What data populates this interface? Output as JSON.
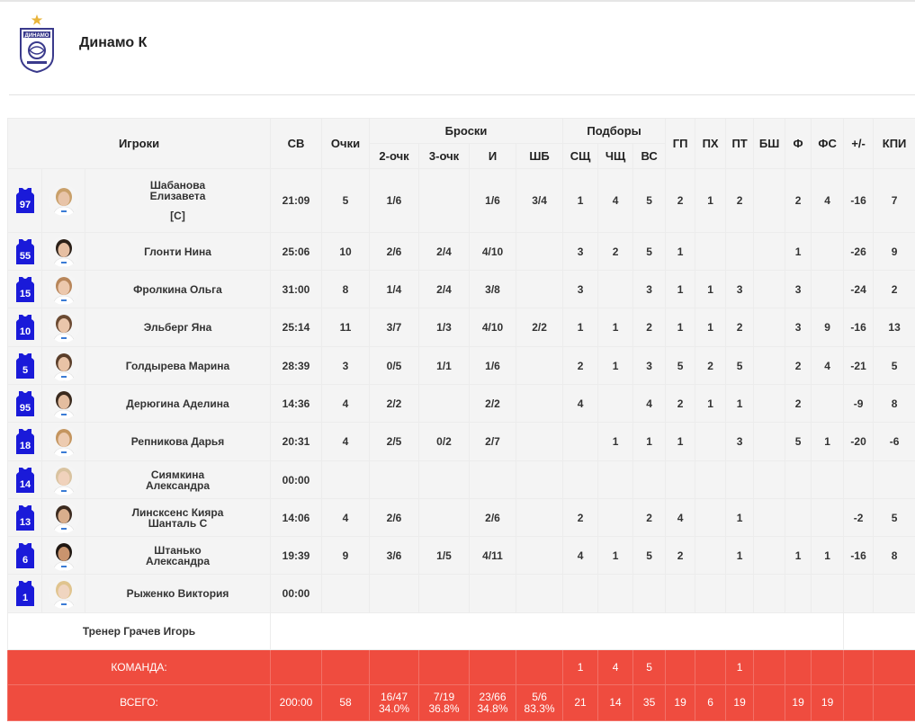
{
  "team": {
    "name": "Динамо К",
    "logo_text": "ДИНАМО"
  },
  "headers": {
    "players": "Игроки",
    "sv": "СВ",
    "points": "Очки",
    "shots": "Броски",
    "two": "2-очк",
    "three": "3-очк",
    "i": "И",
    "sb": "ШБ",
    "rebounds": "Подборы",
    "sshch": "СЩ",
    "chshch": "ЧЩ",
    "vs": "ВС",
    "gp": "ГП",
    "pkh": "ПХ",
    "pt": "ПТ",
    "bsh": "БШ",
    "f": "Ф",
    "fs": "ФС",
    "pm": "+/-",
    "kpi": "КПИ"
  },
  "players": [
    {
      "num": "97",
      "name1": "Шабанова",
      "name2": "Елизавета",
      "captain": "[C]",
      "time": "21:09",
      "pts": "5",
      "two": "1/6",
      "three": "",
      "i": "1/6",
      "sb": "3/4",
      "or": "1",
      "dr": "4",
      "tr": "5",
      "gp": "2",
      "pkh": "1",
      "pt": "2",
      "bsh": "",
      "f": "2",
      "fs": "4",
      "pm": "-16",
      "kpi": "7",
      "skin": "#e8c4a8",
      "hair": "#c9a06a"
    },
    {
      "num": "55",
      "name1": "Глонти Нина",
      "name2": "",
      "captain": "",
      "time": "25:06",
      "pts": "10",
      "two": "2/6",
      "three": "2/4",
      "i": "4/10",
      "sb": "",
      "or": "3",
      "dr": "2",
      "tr": "5",
      "gp": "1",
      "pkh": "",
      "pt": "",
      "bsh": "",
      "f": "1",
      "fs": "",
      "pm": "-26",
      "kpi": "9",
      "skin": "#e6bfa2",
      "hair": "#2b2018"
    },
    {
      "num": "15",
      "name1": "Фролкина Ольга",
      "name2": "",
      "captain": "",
      "time": "31:00",
      "pts": "8",
      "two": "1/4",
      "three": "2/4",
      "i": "3/8",
      "sb": "",
      "or": "3",
      "dr": "",
      "tr": "3",
      "gp": "1",
      "pkh": "1",
      "pt": "3",
      "bsh": "",
      "f": "3",
      "fs": "",
      "pm": "-24",
      "kpi": "2",
      "skin": "#ecc8ad",
      "hair": "#b8865a"
    },
    {
      "num": "10",
      "name1": "Эльберг Яна",
      "name2": "",
      "captain": "",
      "time": "25:14",
      "pts": "11",
      "two": "3/7",
      "three": "1/3",
      "i": "4/10",
      "sb": "2/2",
      "or": "1",
      "dr": "1",
      "tr": "2",
      "gp": "1",
      "pkh": "1",
      "pt": "2",
      "bsh": "",
      "f": "3",
      "fs": "9",
      "pm": "-16",
      "kpi": "13",
      "skin": "#eac6ab",
      "hair": "#6b4a32"
    },
    {
      "num": "5",
      "name1": "Голдырева Марина",
      "name2": "",
      "captain": "",
      "time": "28:39",
      "pts": "3",
      "two": "0/5",
      "three": "1/1",
      "i": "1/6",
      "sb": "",
      "or": "2",
      "dr": "1",
      "tr": "3",
      "gp": "5",
      "pkh": "2",
      "pt": "5",
      "bsh": "",
      "f": "2",
      "fs": "4",
      "pm": "-21",
      "kpi": "5",
      "skin": "#e9c3a6",
      "hair": "#5a3e2a"
    },
    {
      "num": "95",
      "name1": "Дерюгина Аделина",
      "name2": "",
      "captain": "",
      "time": "14:36",
      "pts": "4",
      "two": "2/2",
      "three": "",
      "i": "2/2",
      "sb": "",
      "or": "4",
      "dr": "",
      "tr": "4",
      "gp": "2",
      "pkh": "1",
      "pt": "1",
      "bsh": "",
      "f": "2",
      "fs": "",
      "pm": "-9",
      "kpi": "8",
      "skin": "#e4bd9f",
      "hair": "#3a2a1e"
    },
    {
      "num": "18",
      "name1": "Репникова Дарья",
      "name2": "",
      "captain": "",
      "time": "20:31",
      "pts": "4",
      "two": "2/5",
      "three": "0/2",
      "i": "2/7",
      "sb": "",
      "or": "",
      "dr": "1",
      "tr": "1",
      "gp": "1",
      "pkh": "",
      "pt": "3",
      "bsh": "",
      "f": "5",
      "fs": "1",
      "pm": "-20",
      "kpi": "-6",
      "skin": "#edcbb0",
      "hair": "#c4955f"
    },
    {
      "num": "14",
      "name1": "Сиямкина",
      "name2": "Александра",
      "captain": "",
      "time": "00:00",
      "pts": "",
      "two": "",
      "three": "",
      "i": "",
      "sb": "",
      "or": "",
      "dr": "",
      "tr": "",
      "gp": "",
      "pkh": "",
      "pt": "",
      "bsh": "",
      "f": "",
      "fs": "",
      "pm": "",
      "kpi": "",
      "skin": "#f0d2bc",
      "hair": "#d9c3a0"
    },
    {
      "num": "13",
      "name1": "Линсксенс Кияра",
      "name2": "Шанталь С",
      "captain": "",
      "time": "14:06",
      "pts": "4",
      "two": "2/6",
      "three": "",
      "i": "2/6",
      "sb": "",
      "or": "2",
      "dr": "",
      "tr": "2",
      "gp": "4",
      "pkh": "",
      "pt": "1",
      "bsh": "",
      "f": "",
      "fs": "",
      "pm": "-2",
      "kpi": "5",
      "skin": "#d9ae8c",
      "hair": "#3b2a1f"
    },
    {
      "num": "6",
      "name1": "Штанько",
      "name2": "Александра",
      "captain": "",
      "time": "19:39",
      "pts": "9",
      "two": "3/6",
      "three": "1/5",
      "i": "4/11",
      "sb": "",
      "or": "4",
      "dr": "1",
      "tr": "5",
      "gp": "2",
      "pkh": "",
      "pt": "1",
      "bsh": "",
      "f": "1",
      "fs": "1",
      "pm": "-16",
      "kpi": "8",
      "skin": "#c9946e",
      "hair": "#1f1712"
    },
    {
      "num": "1",
      "name1": "Рыженко Виктория",
      "name2": "",
      "captain": "",
      "time": "00:00",
      "pts": "",
      "two": "",
      "three": "",
      "i": "",
      "sb": "",
      "or": "",
      "dr": "",
      "tr": "",
      "gp": "",
      "pkh": "",
      "pt": "",
      "bsh": "",
      "f": "",
      "fs": "",
      "pm": "",
      "kpi": "",
      "skin": "#f0d5c0",
      "hair": "#e0c48e"
    }
  ],
  "coach": "Тренер Грачев Игорь",
  "team_row": {
    "label": "КОМАНДА:",
    "or": "1",
    "dr": "4",
    "tr": "5",
    "pt": "1"
  },
  "total_row": {
    "label": "ВСЕГО:",
    "time": "200:00",
    "pts": "58",
    "two": "16/47",
    "two_pct": "34.0%",
    "three": "7/19",
    "three_pct": "36.8%",
    "i": "23/66",
    "i_pct": "34.8%",
    "sb": "5/6",
    "sb_pct": "83.3%",
    "or": "21",
    "dr": "14",
    "tr": "35",
    "gp": "19",
    "pkh": "6",
    "pt": "19",
    "bsh": "",
    "f": "19",
    "fs": "19",
    "pm": "",
    "kpi": ""
  },
  "colors": {
    "accent": "#ef4c3f",
    "jersey": "#1a1ad9",
    "header_bg": "#f4f4f4"
  }
}
